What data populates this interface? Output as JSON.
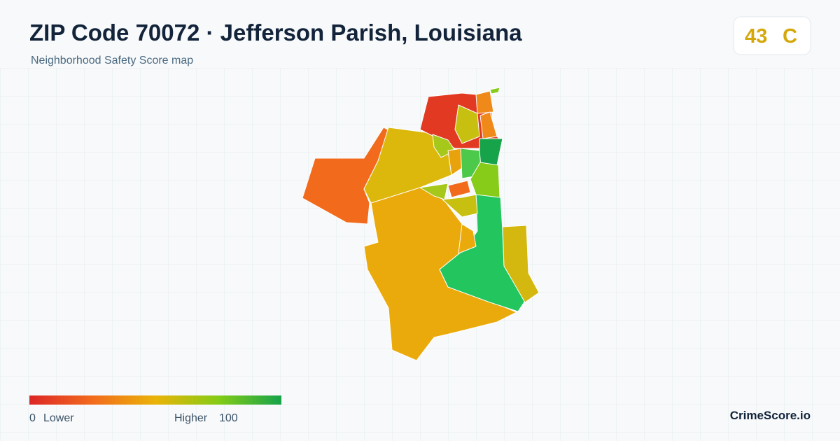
{
  "header": {
    "title": "ZIP Code 70072 · Jefferson Parish, Louisiana",
    "subtitle": "Neighborhood Safety Score map"
  },
  "score": {
    "value": 43,
    "grade": "C"
  },
  "legend": {
    "min": 0,
    "min_label": "Lower",
    "max_label": "Higher",
    "max": 100
  },
  "brand": "CrimeScore.io"
}
